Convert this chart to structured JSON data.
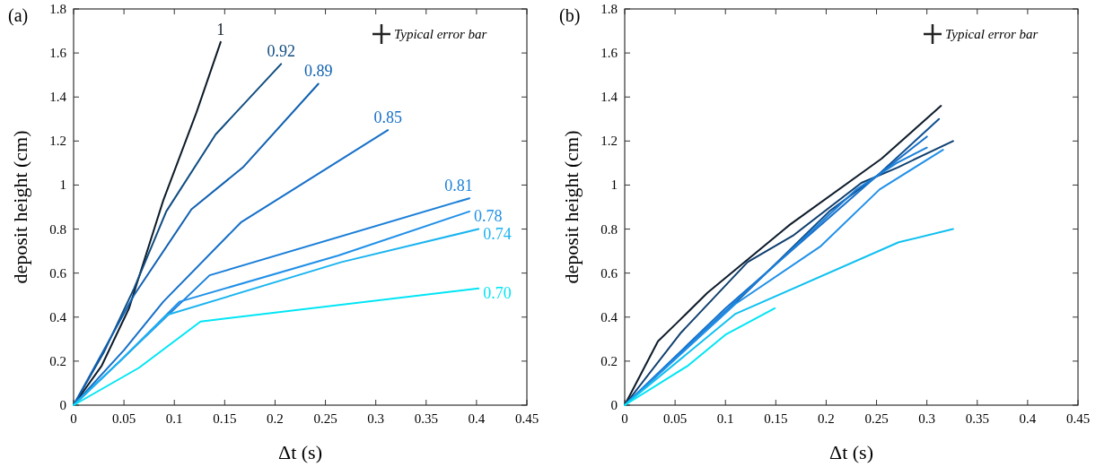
{
  "chart_data": [
    {
      "type": "line",
      "title": "(a)",
      "xlabel": "Δt (s)",
      "ylabel": "deposit height (cm)",
      "annotations": [
        "Typical error bar"
      ],
      "xlim": [
        0,
        0.45
      ],
      "ylim": [
        0,
        1.8
      ],
      "xticks": [
        0,
        0.05,
        0.1,
        0.15,
        0.2,
        0.25,
        0.3,
        0.35,
        0.4,
        0.45
      ],
      "yticks": [
        0,
        0.2,
        0.4,
        0.6,
        0.8,
        1,
        1.2,
        1.4,
        1.6,
        1.8
      ],
      "grid": false,
      "marker": "none",
      "line_style": "solid",
      "series": [
        {
          "name": "1",
          "color": "#0d1b2a",
          "x": [
            0,
            0.028,
            0.055,
            0.089,
            0.122,
            0.146
          ],
          "values": [
            0,
            0.18,
            0.44,
            0.93,
            1.33,
            1.65
          ]
        },
        {
          "name": "0.92",
          "color": "#0f4c81",
          "x": [
            0,
            0.03,
            0.06,
            0.092,
            0.141,
            0.206
          ],
          "values": [
            0,
            0.24,
            0.53,
            0.88,
            1.23,
            1.55
          ]
        },
        {
          "name": "0.89",
          "color": "#1060b0",
          "x": [
            0,
            0.06,
            0.117,
            0.168,
            0.243
          ],
          "values": [
            0,
            0.5,
            0.89,
            1.08,
            1.46
          ]
        },
        {
          "name": "0.85",
          "color": "#1670c8",
          "x": [
            0,
            0.05,
            0.089,
            0.166,
            0.312
          ],
          "values": [
            0,
            0.25,
            0.47,
            0.83,
            1.25
          ]
        },
        {
          "name": "0.81",
          "color": "#1a7fd8",
          "x": [
            0,
            0.046,
            0.135,
            0.393
          ],
          "values": [
            0,
            0.2,
            0.59,
            0.94
          ]
        },
        {
          "name": "0.78",
          "color": "#2090e8",
          "x": [
            0,
            0.046,
            0.105,
            0.263,
            0.393
          ],
          "values": [
            0,
            0.2,
            0.47,
            0.68,
            0.88
          ]
        },
        {
          "name": "0.74",
          "color": "#1ab4f0",
          "x": [
            0,
            0.046,
            0.093,
            0.266,
            0.402
          ],
          "values": [
            0,
            0.2,
            0.41,
            0.65,
            0.8
          ]
        },
        {
          "name": "0.70",
          "color": "#00e5f5",
          "x": [
            0,
            0.065,
            0.126,
            0.402
          ],
          "values": [
            0,
            0.17,
            0.38,
            0.53
          ]
        }
      ]
    },
    {
      "type": "line",
      "title": "(b)",
      "xlabel": "Δt (s)",
      "ylabel": "deposit height (cm)",
      "annotations": [
        "Typical error bar"
      ],
      "xlim": [
        0,
        0.45
      ],
      "ylim": [
        0,
        1.8
      ],
      "xticks": [
        0,
        0.05,
        0.1,
        0.15,
        0.2,
        0.25,
        0.3,
        0.35,
        0.4,
        0.45
      ],
      "yticks": [
        0,
        0.2,
        0.4,
        0.6,
        0.8,
        1,
        1.2,
        1.4,
        1.6,
        1.8
      ],
      "grid": false,
      "marker": "none",
      "line_style": "solid",
      "series": [
        {
          "color": "#0d1b2a",
          "x": [
            0,
            0.033,
            0.051,
            0.082,
            0.164,
            0.255,
            0.314
          ],
          "values": [
            0,
            0.29,
            0.37,
            0.51,
            0.82,
            1.12,
            1.36
          ]
        },
        {
          "color": "#0f3f6f",
          "x": [
            0,
            0.056,
            0.122,
            0.167,
            0.235,
            0.271,
            0.326
          ],
          "values": [
            0,
            0.33,
            0.65,
            0.77,
            1.01,
            1.08,
            1.2
          ]
        },
        {
          "color": "#0f4f8f",
          "x": [
            0,
            0.1,
            0.203,
            0.25,
            0.312
          ],
          "values": [
            0,
            0.42,
            0.88,
            1.04,
            1.3
          ]
        },
        {
          "color": "#1670c8",
          "x": [
            0,
            0.1,
            0.2,
            0.25,
            0.3
          ],
          "values": [
            0,
            0.44,
            0.84,
            1.04,
            1.22
          ]
        },
        {
          "color": "#1a7fd8",
          "x": [
            0,
            0.11,
            0.23,
            0.27,
            0.3
          ],
          "values": [
            0,
            0.47,
            0.98,
            1.1,
            1.17
          ]
        },
        {
          "color": "#2090e8",
          "x": [
            0,
            0.11,
            0.194,
            0.253,
            0.316
          ],
          "values": [
            0,
            0.46,
            0.72,
            0.98,
            1.16
          ]
        },
        {
          "color": "#10c0f0",
          "x": [
            0,
            0.11,
            0.272,
            0.326
          ],
          "values": [
            0,
            0.415,
            0.74,
            0.8
          ]
        },
        {
          "color": "#00e5f5",
          "x": [
            0,
            0.063,
            0.1,
            0.149
          ],
          "values": [
            0,
            0.18,
            0.32,
            0.44
          ]
        }
      ]
    }
  ]
}
